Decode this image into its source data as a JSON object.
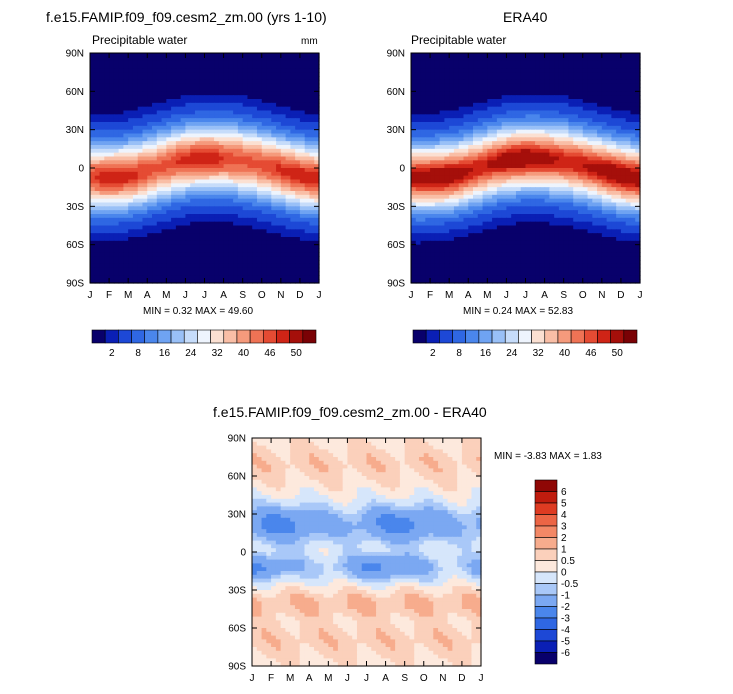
{
  "panels": [
    {
      "id": "model",
      "title": "f.e15.FAMIP.f09_f09.cesm2_zm.00 (yrs 1-10)",
      "subtitle": "Precipitable water",
      "units": "mm",
      "min_max": "MIN =   0.32 MAX =  49.60",
      "peak": 49.6,
      "min": 0.32
    },
    {
      "id": "obs",
      "title": "ERA40",
      "subtitle": "Precipitable water",
      "units": "",
      "min_max": "MIN =   0.24 MAX =  52.83",
      "peak": 52.83,
      "min": 0.24
    },
    {
      "id": "diff",
      "title": "f.e15.FAMIP.f09_f09.cesm2_zm.00 - ERA40",
      "subtitle": "",
      "units": "",
      "min_max": "MIN =  -3.83 MAX =   1.83",
      "peak": 1.83,
      "min": -3.83
    }
  ],
  "chart_data": [
    {
      "type": "heatmap",
      "title": "f.e15.FAMIP.f09_f09.cesm2_zm.00 (yrs 1-10)",
      "subtitle": "Precipitable water",
      "units": "mm",
      "x_ticks": [
        "J",
        "F",
        "M",
        "A",
        "M",
        "J",
        "J",
        "A",
        "S",
        "O",
        "N",
        "D",
        "J"
      ],
      "y_ticks": [
        "90N",
        "60N",
        "30N",
        "0",
        "30S",
        "60S",
        "90S"
      ],
      "xlim": [
        0,
        12
      ],
      "ylim": [
        -90,
        90
      ],
      "min": 0.32,
      "max": 49.6,
      "colorbar_labels": [
        "2",
        "8",
        "16",
        "24",
        "32",
        "40",
        "46",
        "50"
      ]
    },
    {
      "type": "heatmap",
      "title": "ERA40",
      "subtitle": "Precipitable water",
      "x_ticks": [
        "J",
        "F",
        "M",
        "A",
        "M",
        "J",
        "J",
        "A",
        "S",
        "O",
        "N",
        "D",
        "J"
      ],
      "y_ticks": [
        "90N",
        "60N",
        "30N",
        "0",
        "30S",
        "60S",
        "90S"
      ],
      "xlim": [
        0,
        12
      ],
      "ylim": [
        -90,
        90
      ],
      "min": 0.24,
      "max": 52.83,
      "colorbar_labels": [
        "2",
        "8",
        "16",
        "24",
        "32",
        "40",
        "46",
        "50"
      ]
    },
    {
      "type": "heatmap",
      "title": "f.e15.FAMIP.f09_f09.cesm2_zm.00 - ERA40",
      "x_ticks": [
        "J",
        "F",
        "M",
        "A",
        "M",
        "J",
        "J",
        "A",
        "S",
        "O",
        "N",
        "D",
        "J"
      ],
      "y_ticks": [
        "90N",
        "60N",
        "30N",
        "0",
        "30S",
        "60S",
        "90S"
      ],
      "xlim": [
        0,
        12
      ],
      "ylim": [
        -90,
        90
      ],
      "min": -3.83,
      "max": 1.83,
      "colorbar_labels": [
        "6",
        "5",
        "4",
        "3",
        "2",
        "1",
        "0.5",
        "0",
        "-0.5",
        "-1",
        "-2",
        "-3",
        "-4",
        "-5",
        "-6"
      ]
    }
  ],
  "colorbars": {
    "precip": {
      "levels": [
        2,
        4,
        8,
        12,
        16,
        20,
        24,
        28,
        32,
        36,
        40,
        43,
        46,
        48,
        50
      ],
      "colors": [
        "#08006b",
        "#0a1fb5",
        "#1d48d6",
        "#2f67e3",
        "#4a86ec",
        "#6fa3f2",
        "#99c0f7",
        "#c6dcfa",
        "#eef4fd",
        "#fbe0d2",
        "#f9bea6",
        "#f59a7c",
        "#ef7355",
        "#e54b33",
        "#cf2416",
        "#a50f0a",
        "#7a0205"
      ],
      "labels": [
        {
          "text": "2",
          "index": 1
        },
        {
          "text": "8",
          "index": 3
        },
        {
          "text": "16",
          "index": 5
        },
        {
          "text": "24",
          "index": 7
        },
        {
          "text": "32",
          "index": 9
        },
        {
          "text": "40",
          "index": 11
        },
        {
          "text": "46",
          "index": 13
        },
        {
          "text": "50",
          "index": 15
        }
      ]
    },
    "diff": {
      "levels": [
        -6,
        -5,
        -4,
        -3,
        -2,
        -1,
        -0.5,
        0,
        0.5,
        1,
        2,
        3,
        4,
        5,
        6
      ],
      "colors": [
        "#08006b",
        "#0a1fb5",
        "#1d48d6",
        "#2f67e3",
        "#4a86ec",
        "#7ba8f2",
        "#a9c8f8",
        "#d6e6fb",
        "#fde9dd",
        "#fbd0bb",
        "#f7ac8d",
        "#f38866",
        "#ec6545",
        "#de3b22",
        "#c01c0e",
        "#8f0705"
      ],
      "labels": [
        "6",
        "5",
        "4",
        "3",
        "2",
        "1",
        "0.5",
        "0",
        "-0.5",
        "-1",
        "-2",
        "-3",
        "-4",
        "-5",
        "-6"
      ]
    }
  }
}
